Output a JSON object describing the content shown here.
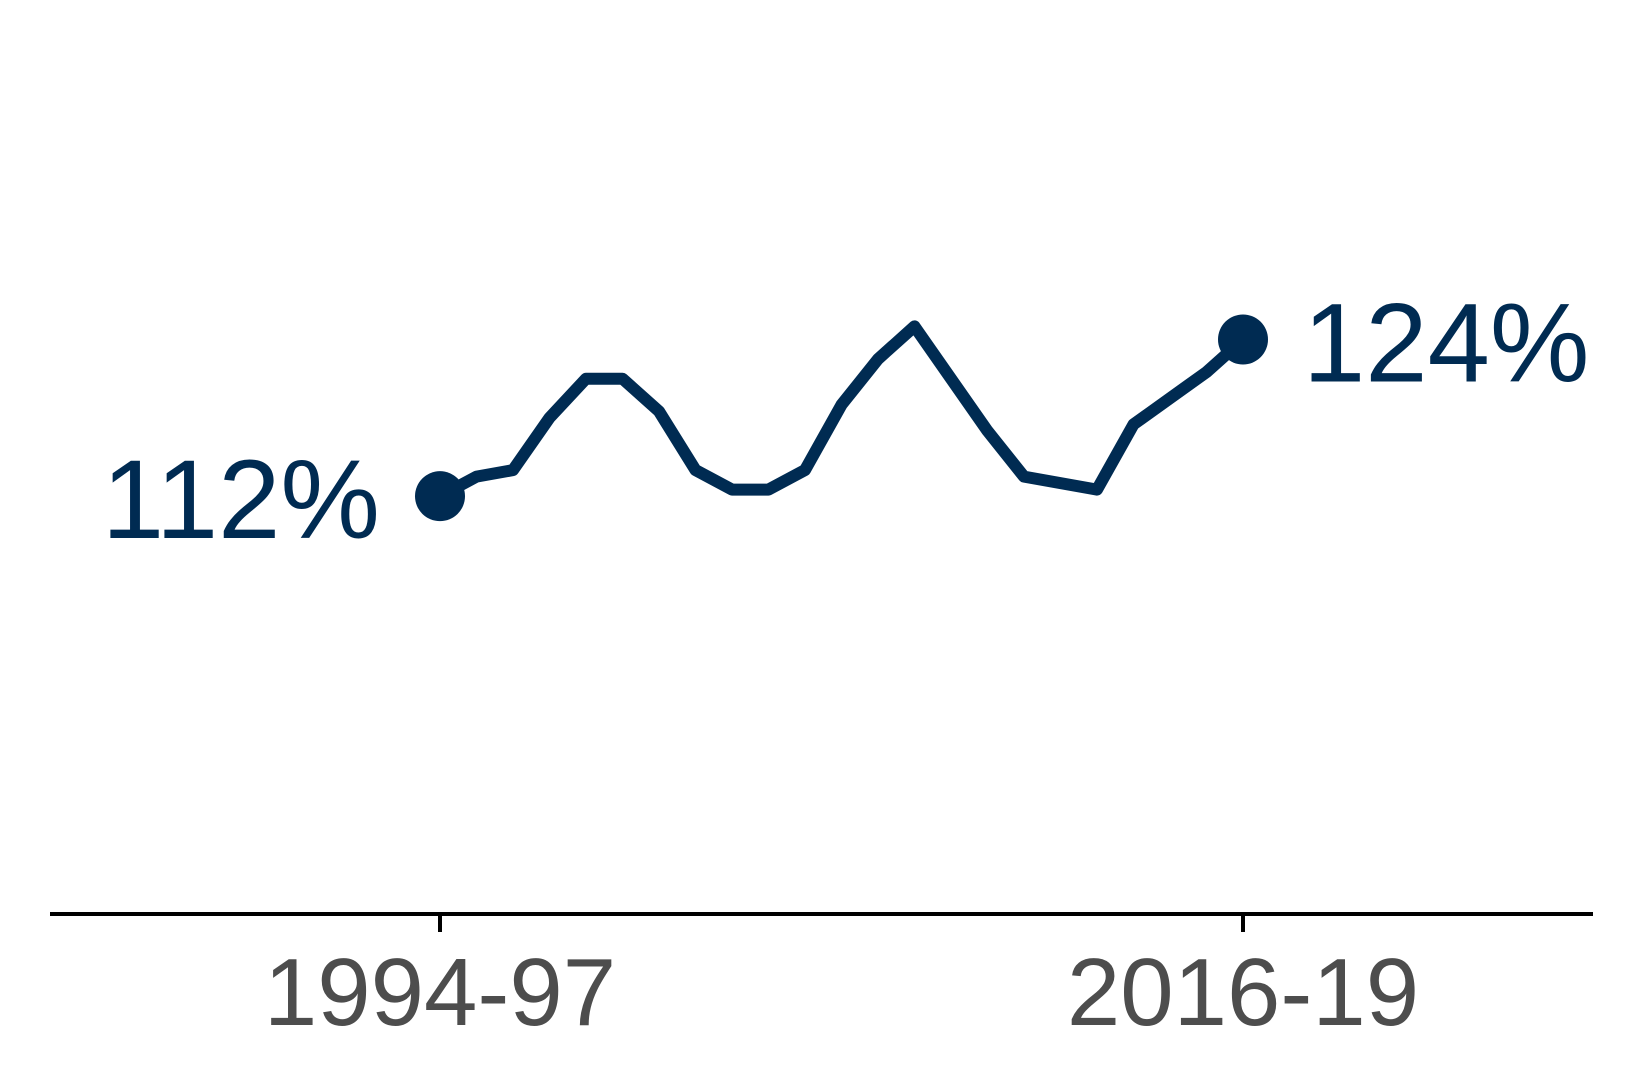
{
  "chart_data": {
    "type": "line",
    "title": "",
    "xlabel": "",
    "ylabel": "",
    "ylim": [
      80,
      150
    ],
    "x_ticks": [
      "1994-97",
      "2016-19"
    ],
    "series": [
      {
        "values": [
          112,
          113.5,
          114,
          118,
          121,
          121,
          118.5,
          114,
          112.5,
          112.5,
          114,
          119,
          122.5,
          125,
          121,
          117,
          113.5,
          113,
          112.5,
          117.5,
          119.5,
          121.5,
          124
        ]
      }
    ],
    "start_label": "112%",
    "end_label": "124%",
    "grid": false,
    "legend": "none",
    "colors": {
      "line": "#002b52",
      "axis": "#000000",
      "tick_text": "#4d4d4d"
    }
  }
}
